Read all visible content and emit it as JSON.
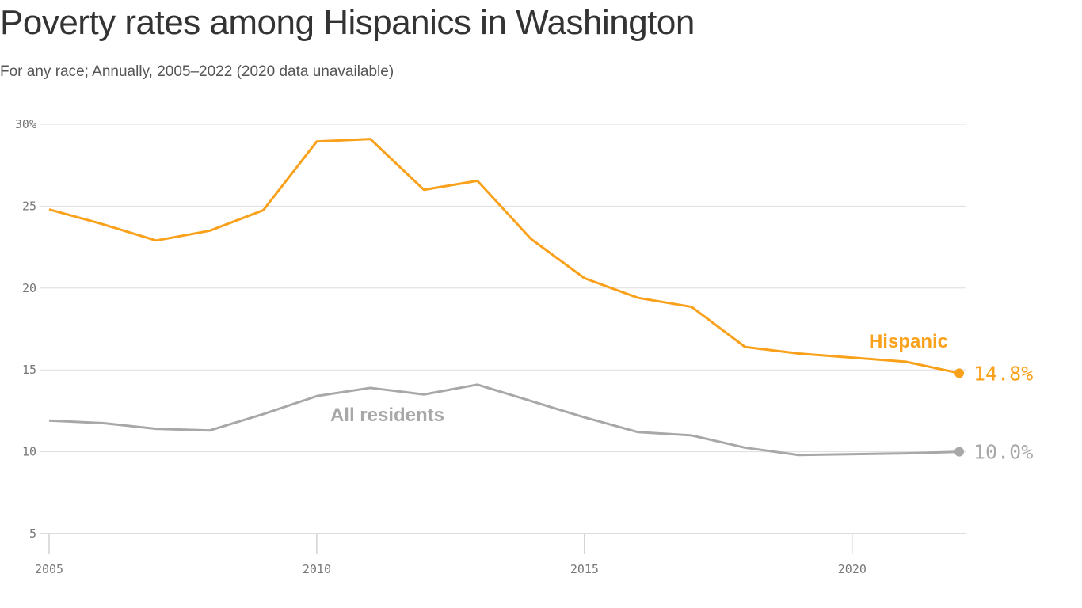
{
  "chart_data": {
    "type": "line",
    "title": "Poverty rates among Hispanics in Washington",
    "subtitle": "For any race; Annually, 2005–2022 (2020 data unavailable)",
    "xlabel": "",
    "ylabel": "",
    "xlim": [
      2005,
      2022
    ],
    "ylim": [
      5,
      30
    ],
    "x_ticks": [
      2005,
      2010,
      2015,
      2020
    ],
    "x_tick_labels": [
      "2005",
      "2010",
      "2015",
      "2020"
    ],
    "y_ticks": [
      5,
      10,
      15,
      20,
      25,
      30
    ],
    "y_tick_labels": [
      "5",
      "10",
      "15",
      "20",
      "25",
      "30%"
    ],
    "grid": true,
    "x": [
      2005,
      2006,
      2007,
      2008,
      2009,
      2010,
      2011,
      2012,
      2013,
      2014,
      2015,
      2016,
      2017,
      2018,
      2019,
      2021,
      2022
    ],
    "series": [
      {
        "name": "Hispanic",
        "color": "#f9a11b",
        "end_label": "14.8%",
        "values": [
          24.8,
          23.9,
          22.9,
          23.5,
          24.75,
          28.95,
          29.1,
          26.0,
          26.55,
          23.0,
          20.6,
          19.4,
          18.85,
          16.4,
          16.0,
          15.5,
          14.8
        ]
      },
      {
        "name": "All residents",
        "color": "#a8a8a8",
        "end_label": "10.0%",
        "values": [
          11.9,
          11.75,
          11.4,
          11.3,
          12.3,
          13.4,
          13.9,
          13.5,
          14.1,
          13.1,
          12.1,
          11.2,
          11.0,
          10.25,
          9.8,
          9.9,
          10.0
        ]
      }
    ]
  }
}
